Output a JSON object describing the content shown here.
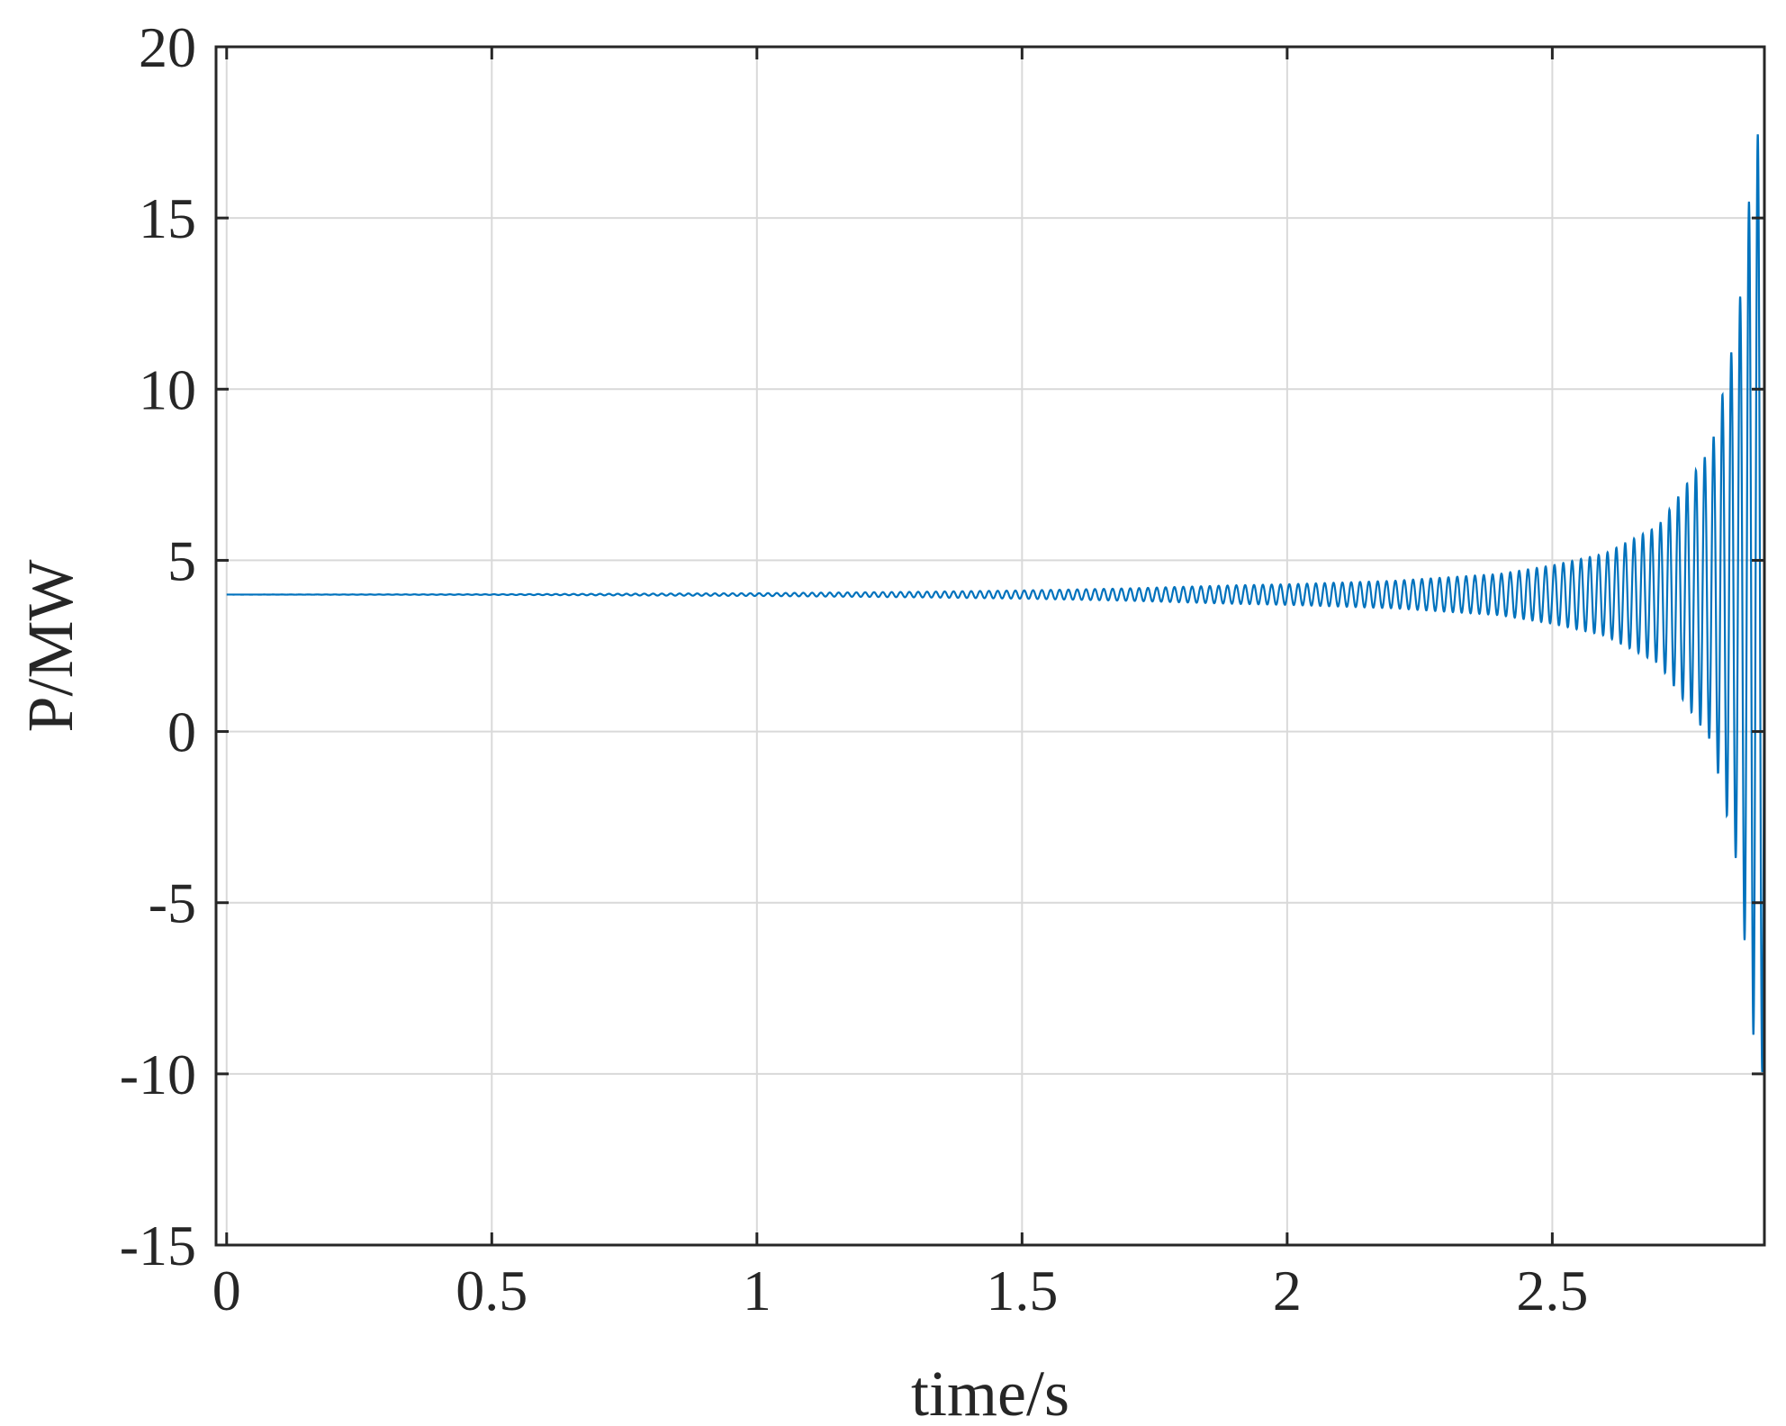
{
  "chart_data": {
    "type": "line",
    "title": "",
    "xlabel": "time/s",
    "ylabel": "P/MW",
    "xlim": [
      -0.02,
      2.9
    ],
    "ylim": [
      -15,
      20
    ],
    "xticks": [
      0,
      0.5,
      1,
      1.5,
      2,
      2.5
    ],
    "xtick_labels": [
      "0",
      "0.5",
      "1",
      "1.5",
      "2",
      "2.5"
    ],
    "yticks": [
      -15,
      -10,
      -5,
      0,
      5,
      10,
      15,
      20
    ],
    "ytick_labels": [
      "-15",
      "-10",
      "-5",
      "0",
      "5",
      "10",
      "15",
      "20"
    ],
    "grid": true,
    "legend": "none",
    "series": [
      {
        "color": "#0072BD",
        "description": "oscillation about 4 MW with exponentially growing amplitude",
        "baseline": 4,
        "oscillation_frequency_hz": 60,
        "envelope": {
          "x": [
            0,
            0.5,
            1.0,
            1.3,
            1.5,
            1.7,
            1.9,
            2.0,
            2.2,
            2.4,
            2.5,
            2.6,
            2.7,
            2.8,
            2.85,
            2.88,
            2.9
          ],
          "amplitude": [
            0.0,
            0.01,
            0.04,
            0.08,
            0.12,
            0.18,
            0.27,
            0.3,
            0.4,
            0.6,
            0.85,
            1.2,
            2.0,
            4.3,
            8.0,
            13.0,
            14.2
          ]
        }
      }
    ]
  }
}
